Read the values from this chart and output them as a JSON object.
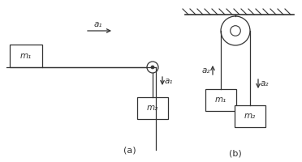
{
  "bg_color": "#ffffff",
  "fig_width": 3.72,
  "fig_height": 2.0,
  "dpi": 100,
  "label_a": "(a)",
  "label_b": "(b)",
  "m1_label": "m₁",
  "m2_label": "m₂",
  "a1_label": "a₁",
  "a2_label": "a₂",
  "line_color": "#333333",
  "box_color": "#ffffff"
}
